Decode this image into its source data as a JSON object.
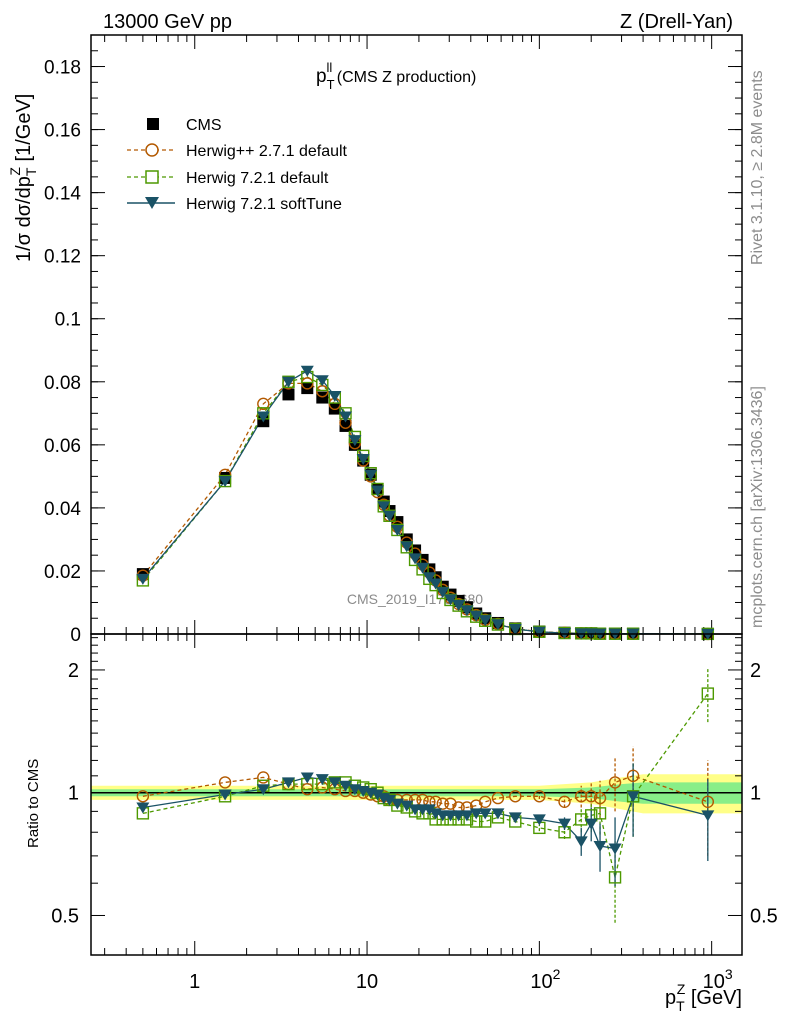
{
  "header": {
    "left": "13000 GeV pp",
    "right": "Z (Drell-Yan)"
  },
  "side": {
    "rivet": "Rivet 3.1.10, ≥ 2.8M events",
    "mcplots": "mcplots.cern.ch [arXiv:1306.3436]"
  },
  "watermark": "CMS_2019_I1753680",
  "colors": {
    "cms": "#000000",
    "herwigpp": "#b35900",
    "herwig721": "#4d9900",
    "softtune": "#1a5266",
    "band_outer": "#ffff88",
    "band_inner": "#88ee88"
  },
  "chart_data": [
    {
      "type": "scatter",
      "panel": "main",
      "title": "p_T^ll (CMS Z production)",
      "title_main": "p",
      "title_sub": "T",
      "title_sup": "ll",
      "title_rest": " (CMS Z production)",
      "ylabel": "1/σ dσ/dp_T^Z [1/GeV]",
      "ylabel_a": "1/σ dσ/dp",
      "ylabel_sub": "T",
      "ylabel_sup": "Z",
      "ylabel_b": " [1/GeV]",
      "xscale": "log",
      "xlim": [
        0.25,
        1500
      ],
      "ylim": [
        0,
        0.19
      ],
      "yticks": [
        {
          "v": 0,
          "label": "0"
        },
        {
          "v": 0.02,
          "label": "0.02"
        },
        {
          "v": 0.04,
          "label": "0.04"
        },
        {
          "v": 0.06,
          "label": "0.06"
        },
        {
          "v": 0.08,
          "label": "0.08"
        },
        {
          "v": 0.1,
          "label": "0.1"
        },
        {
          "v": 0.12,
          "label": "0.12"
        },
        {
          "v": 0.14,
          "label": "0.14"
        },
        {
          "v": 0.16,
          "label": "0.16"
        },
        {
          "v": 0.18,
          "label": "0.18"
        }
      ],
      "legend_position": "top-left",
      "x": [
        0.5,
        1.5,
        2.5,
        3.5,
        4.5,
        5.5,
        6.5,
        7.5,
        8.5,
        9.5,
        10.5,
        11.5,
        12.5,
        13.5,
        15,
        17,
        19,
        21,
        23,
        25,
        27.5,
        30.5,
        34,
        38,
        43,
        48.5,
        57.5,
        72.5,
        100,
        140,
        175,
        200,
        225,
        275,
        350,
        950
      ],
      "series": [
        {
          "name": "CMS",
          "key": "cms",
          "marker": "square-filled",
          "line": "none",
          "values": [
            0.019,
            0.0495,
            0.0675,
            0.076,
            0.078,
            0.075,
            0.0715,
            0.066,
            0.06,
            0.055,
            0.0505,
            0.046,
            0.042,
            0.039,
            0.0355,
            0.03,
            0.0265,
            0.0235,
            0.0205,
            0.018,
            0.015,
            0.0125,
            0.0105,
            0.0085,
            0.0065,
            0.005,
            0.0035,
            0.0018,
            0.0008,
            0.0004,
            0.0002,
            0.0002,
            0.0001,
            0.0001,
            0.0001,
            2e-05
          ]
        },
        {
          "name": "Herwig++ 2.7.1 default",
          "key": "herwigpp",
          "marker": "circle-open",
          "line": "dashed",
          "values": [
            0.0185,
            0.0505,
            0.073,
            0.0795,
            0.0795,
            0.077,
            0.073,
            0.067,
            0.0605,
            0.055,
            0.05,
            0.045,
            0.041,
            0.0375,
            0.034,
            0.029,
            0.0255,
            0.022,
            0.0195,
            0.017,
            0.014,
            0.0115,
            0.0095,
            0.0078,
            0.006,
            0.0045,
            0.0032,
            0.0017,
            0.0007,
            0.0004,
            0.0002,
            0.0002,
            0.0001,
            0.0001,
            0.0001,
            2e-05
          ]
        },
        {
          "name": "Herwig 7.2.1 default",
          "key": "herwig721",
          "marker": "square-open",
          "line": "dashed",
          "values": [
            0.017,
            0.0485,
            0.07,
            0.08,
            0.0815,
            0.079,
            0.075,
            0.07,
            0.0625,
            0.0565,
            0.051,
            0.046,
            0.0405,
            0.0375,
            0.033,
            0.0275,
            0.0235,
            0.0205,
            0.0175,
            0.0155,
            0.013,
            0.0108,
            0.009,
            0.0072,
            0.0055,
            0.0042,
            0.003,
            0.0016,
            0.0007,
            0.0003,
            0.0002,
            0.0002,
            0.0001,
            0.0001,
            0.0001,
            4e-05
          ]
        },
        {
          "name": "Herwig 7.2.1 softTune",
          "key": "softtune",
          "marker": "triangle-down-filled",
          "line": "solid",
          "values": [
            0.0175,
            0.0485,
            0.069,
            0.08,
            0.0835,
            0.0805,
            0.0755,
            0.069,
            0.0615,
            0.0555,
            0.0505,
            0.0455,
            0.0405,
            0.0375,
            0.033,
            0.0278,
            0.024,
            0.021,
            0.018,
            0.016,
            0.0133,
            0.011,
            0.0092,
            0.0075,
            0.0058,
            0.0044,
            0.0031,
            0.0016,
            0.0007,
            0.0003,
            0.0002,
            0.0002,
            0.0001,
            0.0001,
            0.0001,
            2e-05
          ]
        }
      ]
    },
    {
      "type": "line",
      "panel": "ratio",
      "ylabel": "Ratio to CMS",
      "xlabel": "p_T^Z [GeV]",
      "xlabel_a": "p",
      "xlabel_sub": "T",
      "xlabel_sup": "Z",
      "xlabel_b": " [GeV]",
      "xscale": "log",
      "xlim": [
        0.25,
        1500
      ],
      "yscale": "log",
      "ylim": [
        0.4,
        2.45
      ],
      "xticks": [
        {
          "v": 1,
          "label": "1"
        },
        {
          "v": 10,
          "label": "10"
        },
        {
          "v": 100,
          "label": "10",
          "exp": "2"
        },
        {
          "v": 1000,
          "label": "10",
          "exp": "3"
        }
      ],
      "yticks": [
        {
          "v": 0.5,
          "label": "0.5"
        },
        {
          "v": 1,
          "label": "1"
        },
        {
          "v": 2,
          "label": "2"
        }
      ],
      "reference_band": {
        "x": [
          0.25,
          100,
          200,
          300,
          400,
          1500
        ],
        "inner": [
          0.02,
          0.02,
          0.03,
          0.05,
          0.06,
          0.06
        ],
        "outer": [
          0.04,
          0.04,
          0.06,
          0.09,
          0.11,
          0.11
        ]
      },
      "series": [
        {
          "name": "Herwig++ 2.7.1 default",
          "key": "herwigpp",
          "x": [
            0.5,
            1.5,
            2.5,
            3.5,
            4.5,
            5.5,
            6.5,
            7.5,
            8.5,
            9.5,
            10.5,
            11.5,
            12.5,
            13.5,
            15,
            17,
            19,
            21,
            23,
            25,
            27.5,
            30.5,
            34,
            38,
            43,
            48.5,
            57.5,
            72.5,
            100,
            140,
            175,
            200,
            225,
            275,
            350,
            950
          ],
          "values": [
            0.98,
            1.06,
            1.09,
            1.05,
            1.02,
            1.03,
            1.02,
            1.01,
            1.01,
            1.0,
            0.99,
            0.98,
            0.98,
            0.96,
            0.96,
            0.96,
            0.96,
            0.96,
            0.95,
            0.95,
            0.94,
            0.94,
            0.92,
            0.92,
            0.93,
            0.95,
            0.97,
            0.98,
            0.98,
            0.95,
            0.98,
            0.98,
            0.97,
            1.06,
            1.1,
            0.95
          ],
          "err": [
            0.005,
            0.005,
            0.005,
            0.005,
            0.005,
            0.005,
            0.005,
            0.005,
            0.005,
            0.005,
            0.005,
            0.005,
            0.005,
            0.005,
            0.005,
            0.005,
            0.005,
            0.005,
            0.005,
            0.005,
            0.005,
            0.005,
            0.005,
            0.005,
            0.005,
            0.005,
            0.01,
            0.01,
            0.015,
            0.03,
            0.06,
            0.08,
            0.1,
            0.16,
            0.2,
            0.25
          ]
        },
        {
          "name": "Herwig 7.2.1 default",
          "key": "herwig721",
          "x": [
            0.5,
            1.5,
            2.5,
            3.5,
            4.5,
            5.5,
            6.5,
            7.5,
            8.5,
            9.5,
            10.5,
            11.5,
            12.5,
            13.5,
            15,
            17,
            19,
            21,
            23,
            25,
            27.5,
            30.5,
            34,
            38,
            43,
            48.5,
            57.5,
            72.5,
            100,
            140,
            175,
            200,
            225,
            275,
            350,
            950
          ],
          "values": [
            0.89,
            0.98,
            1.04,
            1.05,
            1.05,
            1.05,
            1.06,
            1.06,
            1.04,
            1.03,
            1.02,
            1.0,
            0.97,
            0.96,
            0.93,
            0.92,
            0.9,
            0.89,
            0.89,
            0.86,
            0.86,
            0.86,
            0.86,
            0.86,
            0.85,
            0.85,
            0.87,
            0.85,
            0.82,
            0.8,
            0.86,
            0.88,
            0.89,
            0.62,
            0.98,
            1.75
          ],
          "err": [
            0.005,
            0.005,
            0.005,
            0.005,
            0.005,
            0.005,
            0.005,
            0.005,
            0.005,
            0.005,
            0.005,
            0.005,
            0.005,
            0.005,
            0.005,
            0.005,
            0.005,
            0.005,
            0.005,
            0.005,
            0.005,
            0.005,
            0.005,
            0.005,
            0.005,
            0.005,
            0.01,
            0.01,
            0.015,
            0.03,
            0.06,
            0.08,
            0.1,
            0.14,
            0.2,
            0.26
          ]
        },
        {
          "name": "Herwig 7.2.1 softTune",
          "key": "softtune",
          "x": [
            0.5,
            1.5,
            2.5,
            3.5,
            4.5,
            5.5,
            6.5,
            7.5,
            8.5,
            9.5,
            10.5,
            11.5,
            12.5,
            13.5,
            15,
            17,
            19,
            21,
            23,
            25,
            27.5,
            30.5,
            34,
            38,
            43,
            48.5,
            57.5,
            72.5,
            100,
            140,
            175,
            200,
            225,
            275,
            350,
            950
          ],
          "values": [
            0.92,
            0.99,
            1.02,
            1.06,
            1.09,
            1.08,
            1.06,
            1.04,
            1.02,
            1.01,
            1.0,
            0.99,
            0.97,
            0.96,
            0.94,
            0.93,
            0.91,
            0.91,
            0.91,
            0.89,
            0.88,
            0.88,
            0.88,
            0.88,
            0.89,
            0.89,
            0.89,
            0.87,
            0.86,
            0.84,
            0.76,
            0.84,
            0.74,
            0.73,
            0.98,
            0.88
          ],
          "err": [
            0.005,
            0.005,
            0.005,
            0.005,
            0.005,
            0.005,
            0.005,
            0.005,
            0.005,
            0.005,
            0.005,
            0.005,
            0.005,
            0.005,
            0.005,
            0.005,
            0.005,
            0.005,
            0.005,
            0.005,
            0.005,
            0.005,
            0.005,
            0.005,
            0.005,
            0.005,
            0.01,
            0.01,
            0.015,
            0.03,
            0.06,
            0.08,
            0.1,
            0.14,
            0.2,
            0.2
          ]
        }
      ]
    }
  ]
}
